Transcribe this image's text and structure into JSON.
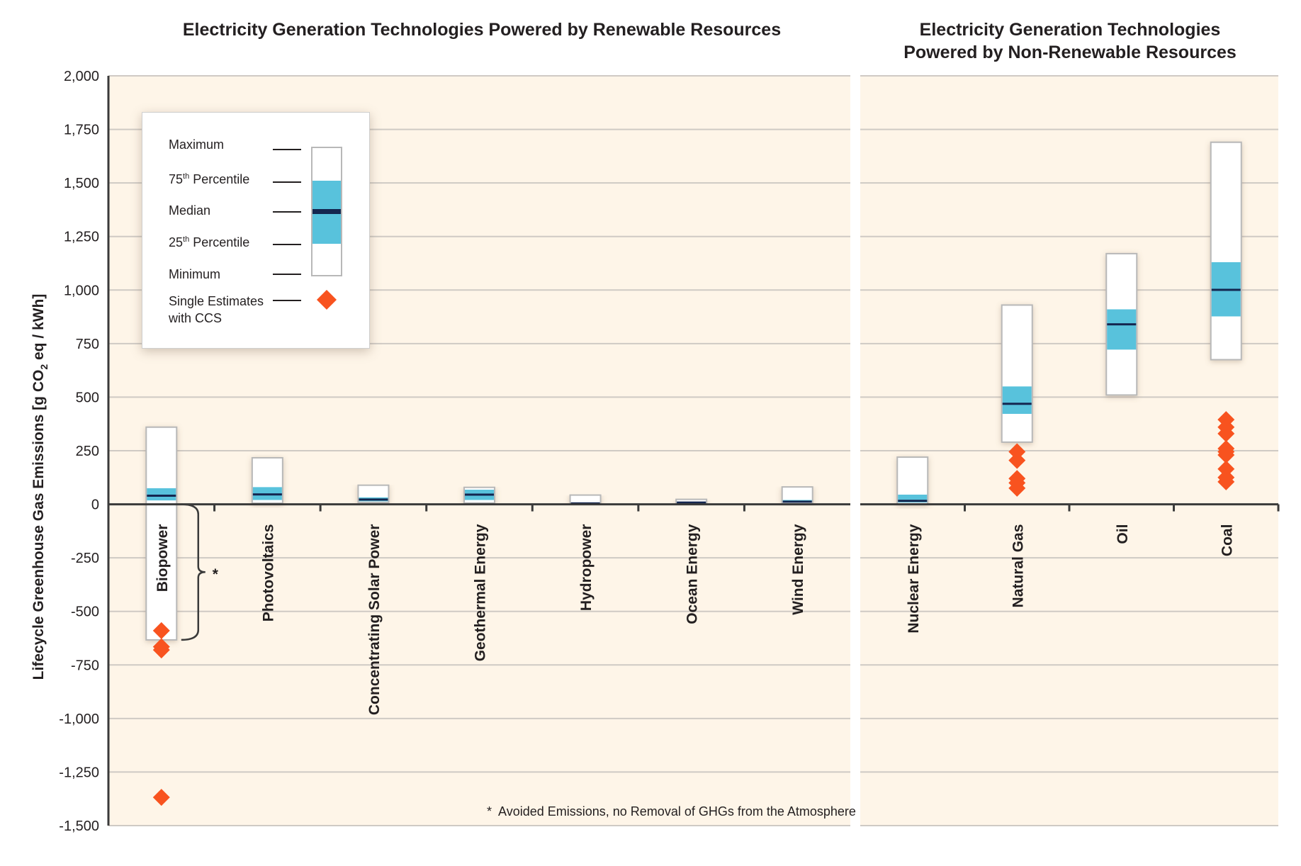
{
  "chart_data": {
    "type": "box",
    "title": "Electricity Generation Technologies Powered by Renewable Resources",
    "title_right_line1": "Electricity Generation Technologies",
    "title_right_line2": "Powered by Non-Renewable Resources",
    "ylabel": "Lifecycle Greenhouse Gas Emissions [g CO2 eq / kWh]",
    "ylabel_parts": [
      "Lifecycle Greenhouse Gas Emissions [g CO",
      "2",
      " eq / kWh]"
    ],
    "ylim": [
      -1500,
      2000
    ],
    "yticks": [
      2000,
      1750,
      1500,
      1250,
      1000,
      750,
      500,
      250,
      0,
      -250,
      -500,
      -750,
      -1000,
      -1250,
      -1500
    ],
    "ytick_labels": [
      "2,000",
      "1,750",
      "1,500",
      "1,250",
      "1,000",
      "750",
      "500",
      "250",
      "0",
      "-250",
      "-500",
      "-750",
      "-1,000",
      "-1,250",
      "-1,500"
    ],
    "grid": true,
    "groups": [
      {
        "name": "renewable",
        "categories": [
          {
            "label": "Biopower",
            "max": 360,
            "q3": 75,
            "median": 40,
            "q1": 18,
            "min": -633,
            "ccs": [
              -590,
              -665,
              -680,
              -1368
            ]
          },
          {
            "label": "Photovoltaics",
            "max": 217,
            "q3": 80,
            "median": 46,
            "q1": 20,
            "min": 5,
            "ccs": []
          },
          {
            "label": "Concentrating Solar Power",
            "max": 89,
            "q3": 32,
            "median": 22,
            "q1": 14,
            "min": 9,
            "ccs": []
          },
          {
            "label": "Geothermal Energy",
            "max": 79,
            "q3": 68,
            "median": 45,
            "q1": 20,
            "min": 6,
            "ccs": []
          },
          {
            "label": "Hydropower",
            "max": 43,
            "q3": 7,
            "median": 4,
            "q1": 3,
            "min": 0,
            "ccs": []
          },
          {
            "label": "Ocean Energy",
            "max": 23,
            "q3": 8,
            "median": 8,
            "q1": 2,
            "min": 2,
            "ccs": []
          },
          {
            "label": "Wind Energy",
            "max": 81,
            "q3": 20,
            "median": 12,
            "q1": 8,
            "min": 2,
            "ccs": []
          }
        ]
      },
      {
        "name": "non-renewable",
        "categories": [
          {
            "label": "Nuclear Energy",
            "max": 220,
            "q3": 45,
            "median": 16,
            "q1": 8,
            "min": 1,
            "ccs": []
          },
          {
            "label": "Natural Gas",
            "max": 930,
            "q3": 550,
            "median": 469,
            "q1": 422,
            "min": 290,
            "ccs": [
              245,
              205,
              120,
              100,
              75
            ]
          },
          {
            "label": "Oil",
            "max": 1170,
            "q3": 910,
            "median": 840,
            "q1": 722,
            "min": 510,
            "ccs": []
          },
          {
            "label": "Coal",
            "max": 1690,
            "q3": 1130,
            "median": 1001,
            "q1": 877,
            "min": 675,
            "ccs": [
              395,
              360,
              330,
              260,
              245,
              230,
              165,
              125,
              105
            ]
          }
        ]
      }
    ],
    "legend": {
      "placement": "top-left",
      "items": {
        "maximum": "Maximum",
        "p75_num": "75",
        "p75_sup": "th",
        "p75_text": " Percentile",
        "median": "Median",
        "p25_num": "25",
        "p25_sup": "th",
        "p25_text": " Percentile",
        "minimum": "Minimum",
        "ccs_line1": "Single Estimates",
        "ccs_line2": "with CCS"
      }
    },
    "annotation_star": "*",
    "footnote_star": "*",
    "footnote": "Avoided Emissions, no Removal of GHGs from the Atmosphere",
    "colors": {
      "plot_bg": "#fef5e8",
      "iqr": "#58c2dc",
      "median": "#14264f",
      "ccs_marker": "#f8531f",
      "box_border": "#b8b8b8",
      "grid": "#cfcac4",
      "axis": "#3a3a3a"
    }
  }
}
